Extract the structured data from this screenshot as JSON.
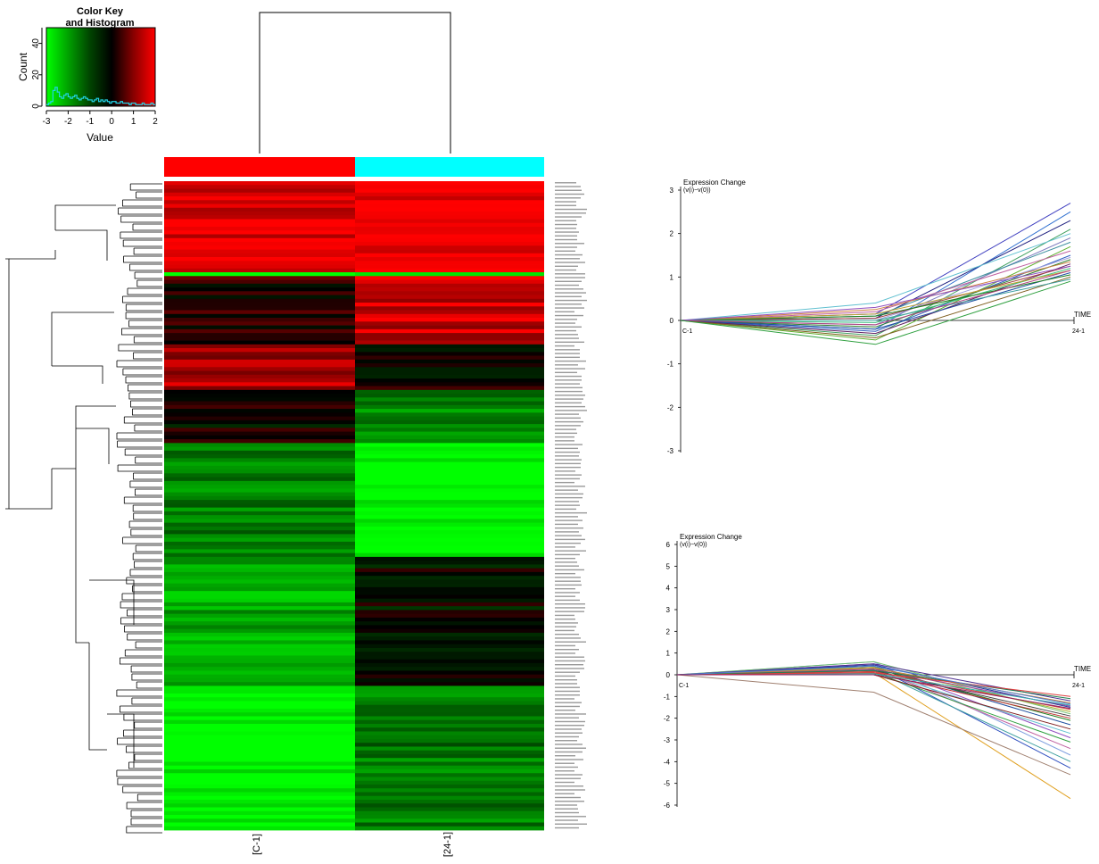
{
  "colorkey": {
    "title_line1": "Color Key",
    "title_line2": "and Histogram",
    "ylabel": "Count",
    "xlabel": "Value",
    "xticks": [
      -3,
      -2,
      -1,
      0,
      1,
      2
    ],
    "yticks": [
      0,
      20,
      40
    ],
    "hist_color": "#22d3e6"
  },
  "colors": {
    "low": "#00ff00",
    "mid": "#000000",
    "high": "#ff0000",
    "col1_sidebar": "#ff0000",
    "col2_sidebar": "#00ffff"
  },
  "heatmap": {
    "columns": [
      "[C-1]",
      "[24-1]"
    ]
  },
  "chart_data": [
    {
      "type": "heatmap",
      "title": "",
      "columns": [
        "[C-1]",
        "[24-1]"
      ],
      "value_range": [
        -3,
        2
      ],
      "rows": [
        {
          "band": "top-red",
          "rows": 24,
          "C-1": 1.8,
          "24-1": 2.0
        },
        {
          "band": "green-strip",
          "rows": 1,
          "C-1": -3.0,
          "24-1": -3.0
        },
        {
          "band": "black/red",
          "rows": 18,
          "C-1": 0.3,
          "24-1": 1.6
        },
        {
          "band": "red/dark",
          "rows": 12,
          "C-1": 1.4,
          "24-1": 0.1
        },
        {
          "band": "black/green",
          "rows": 14,
          "C-1": 0.0,
          "24-1": -1.6
        },
        {
          "band": "dark-green/bright-green",
          "rows": 30,
          "C-1": -1.5,
          "24-1": -3.0
        },
        {
          "band": "green/black",
          "rows": 34,
          "C-1": -2.0,
          "24-1": -0.1
        },
        {
          "band": "bright-green/dark-green",
          "rows": 38,
          "C-1": -3.0,
          "24-1": -1.4
        }
      ]
    },
    {
      "type": "line",
      "title": "Expression Change",
      "ylabel": "(v(i)−v(0))",
      "xlabel": "TIME",
      "x": [
        "C-1",
        "",
        "24-1"
      ],
      "ylim": [
        -3,
        3
      ],
      "yticks": [
        -3,
        -2,
        -1,
        0,
        1,
        2,
        3
      ],
      "series": [
        {
          "values": [
            0,
            0.15,
            2.7
          ],
          "color": "#4040c0"
        },
        {
          "values": [
            0,
            -0.2,
            2.5
          ],
          "color": "#3070d0"
        },
        {
          "values": [
            0,
            0.05,
            2.3
          ],
          "color": "#202080"
        },
        {
          "values": [
            0,
            -0.35,
            2.1
          ],
          "color": "#40a060"
        },
        {
          "values": [
            0,
            0.4,
            2.0
          ],
          "color": "#60c0d0"
        },
        {
          "values": [
            0,
            -0.1,
            1.9
          ],
          "color": "#8080c0"
        },
        {
          "values": [
            0,
            0.1,
            1.8
          ],
          "color": "#4090a0"
        },
        {
          "values": [
            0,
            -0.45,
            1.7
          ],
          "color": "#60b030"
        },
        {
          "values": [
            0,
            0.2,
            1.6
          ],
          "color": "#c060a0"
        },
        {
          "values": [
            0,
            -0.25,
            1.5
          ],
          "color": "#3060c0"
        },
        {
          "values": [
            0,
            0.0,
            1.45
          ],
          "color": "#a0a0e0"
        },
        {
          "values": [
            0,
            -0.15,
            1.4
          ],
          "color": "#308030"
        },
        {
          "values": [
            0,
            0.25,
            1.35
          ],
          "color": "#d08040"
        },
        {
          "values": [
            0,
            -0.3,
            1.3
          ],
          "color": "#602060"
        },
        {
          "values": [
            0,
            0.05,
            1.25
          ],
          "color": "#a04040"
        },
        {
          "values": [
            0,
            -0.05,
            1.2
          ],
          "color": "#40c080"
        },
        {
          "values": [
            0,
            0.15,
            1.15
          ],
          "color": "#c0a030"
        },
        {
          "values": [
            0,
            -0.2,
            1.1
          ],
          "color": "#2050a0"
        },
        {
          "values": [
            0,
            0.1,
            1.05
          ],
          "color": "#208020"
        },
        {
          "values": [
            0,
            -0.4,
            1.0
          ],
          "color": "#806020"
        },
        {
          "values": [
            0,
            0.0,
            0.95
          ],
          "color": "#40a0a0"
        },
        {
          "values": [
            0,
            -0.1,
            1.15
          ],
          "color": "#b04080"
        },
        {
          "values": [
            0,
            0.3,
            1.25
          ],
          "color": "#9050c0"
        },
        {
          "values": [
            0,
            -0.55,
            0.9
          ],
          "color": "#30a040"
        }
      ]
    },
    {
      "type": "line",
      "title": "Expression Change",
      "ylabel": "(v(i)−v(0))",
      "xlabel": "TIME",
      "x": [
        "C-1",
        "",
        "24-1"
      ],
      "ylim": [
        -6,
        6
      ],
      "yticks": [
        -6,
        -5,
        -4,
        -3,
        -2,
        -1,
        0,
        1,
        2,
        3,
        4,
        5,
        6
      ],
      "series": [
        {
          "values": [
            0,
            0.1,
            -5.7
          ],
          "color": "#e0a020"
        },
        {
          "values": [
            0,
            -0.8,
            -4.6
          ],
          "color": "#a08070"
        },
        {
          "values": [
            0,
            0.4,
            -4.3
          ],
          "color": "#3050c0"
        },
        {
          "values": [
            0,
            0.2,
            -4.0
          ],
          "color": "#40a0a0"
        },
        {
          "values": [
            0,
            0.6,
            -3.7
          ],
          "color": "#80a0e0"
        },
        {
          "values": [
            0,
            0.3,
            -3.4
          ],
          "color": "#c060a0"
        },
        {
          "values": [
            0,
            0.1,
            -3.1
          ],
          "color": "#30a040"
        },
        {
          "values": [
            0,
            0.5,
            -2.9
          ],
          "color": "#9050c0"
        },
        {
          "values": [
            0,
            0.2,
            -2.7
          ],
          "color": "#60c0d0"
        },
        {
          "values": [
            0,
            0.0,
            -2.5
          ],
          "color": "#802020"
        },
        {
          "values": [
            0,
            0.4,
            -2.3
          ],
          "color": "#2050a0"
        },
        {
          "values": [
            0,
            0.3,
            -2.1
          ],
          "color": "#208020"
        },
        {
          "values": [
            0,
            0.1,
            -2.0
          ],
          "color": "#c03030"
        },
        {
          "values": [
            0,
            0.2,
            -1.9
          ],
          "color": "#404040"
        },
        {
          "values": [
            0,
            0.6,
            -1.8
          ],
          "color": "#70c070"
        },
        {
          "values": [
            0,
            0.35,
            -1.7
          ],
          "color": "#b0b030"
        },
        {
          "values": [
            0,
            0.15,
            -1.6
          ],
          "color": "#d04040"
        },
        {
          "values": [
            0,
            0.45,
            -1.5
          ],
          "color": "#2040a0"
        },
        {
          "values": [
            0,
            0.25,
            -1.45
          ],
          "color": "#a040a0"
        },
        {
          "values": [
            0,
            0.05,
            -1.4
          ],
          "color": "#30b0b0"
        },
        {
          "values": [
            0,
            0.3,
            -1.3
          ],
          "color": "#c08040"
        },
        {
          "values": [
            0,
            0.5,
            -1.2
          ],
          "color": "#503090"
        },
        {
          "values": [
            0,
            0.2,
            -1.1
          ],
          "color": "#208050"
        },
        {
          "values": [
            0,
            0.1,
            -1.0
          ],
          "color": "#e04040"
        },
        {
          "values": [
            0,
            0.4,
            -1.35
          ],
          "color": "#5080d0"
        },
        {
          "values": [
            0,
            0.0,
            -1.55
          ],
          "color": "#902060"
        }
      ]
    }
  ]
}
